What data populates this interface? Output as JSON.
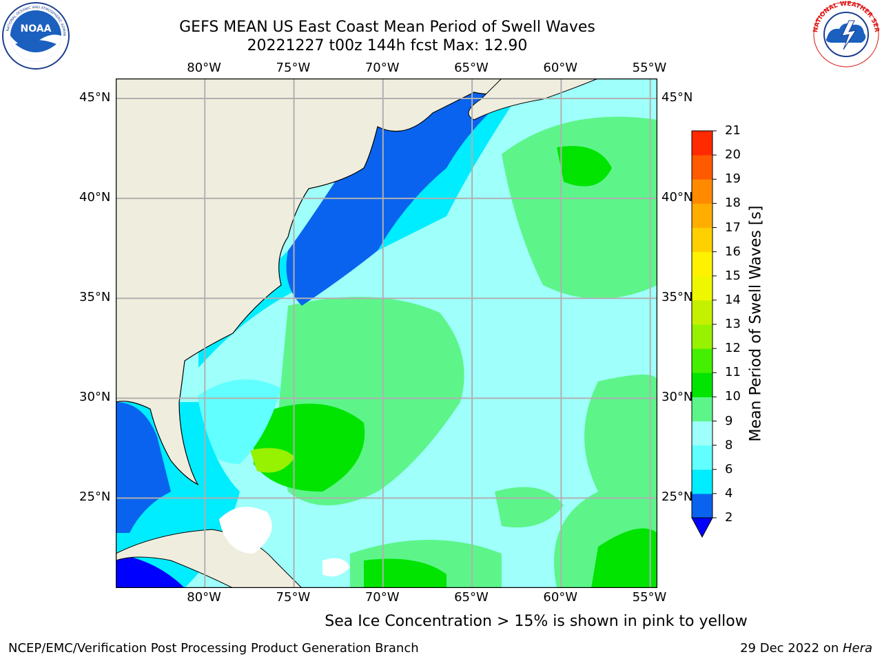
{
  "title": {
    "line1": "GEFS MEAN US East Coast Mean Period of Swell Waves",
    "line2": "20221227 t00z 144h fcst   Max: 12.90"
  },
  "logos": {
    "left": "NOAA",
    "right": "NATIONAL WEATHER SERVICE"
  },
  "map": {
    "lon_labels": [
      "80°W",
      "75°W",
      "70°W",
      "65°W",
      "60°W",
      "55°W"
    ],
    "lat_labels": [
      "45°N",
      "40°N",
      "35°N",
      "30°N",
      "25°N"
    ],
    "lon_range": [
      -85,
      -54.6
    ],
    "lat_range": [
      20.5,
      46
    ],
    "land_color": "#efedde",
    "grid_color": "#b0b0b0"
  },
  "colorbar": {
    "title": "Mean Period of Swell Waves [s]",
    "ticks": [
      "2",
      "4",
      "6",
      "8",
      "9",
      "10",
      "11",
      "12",
      "13",
      "14",
      "15",
      "16",
      "17",
      "18",
      "19",
      "20",
      "21"
    ],
    "colors": [
      "#0a63ee",
      "#00ecff",
      "#61ffff",
      "#9efffb",
      "#5df58a",
      "#00e400",
      "#44ef00",
      "#96f200",
      "#c5f000",
      "#eff700",
      "#fff200",
      "#ffd000",
      "#ffae00",
      "#ff8a00",
      "#ff5a00",
      "#ff2a00"
    ],
    "under_color": "#0000ff"
  },
  "note": "Sea Ice Concentration > 15% is shown in pink to yellow",
  "footer": {
    "left": "NCEP/EMC/Verification Post Processing Product Generation Branch",
    "date": "29 Dec 2022 on ",
    "machine": "Hera"
  }
}
